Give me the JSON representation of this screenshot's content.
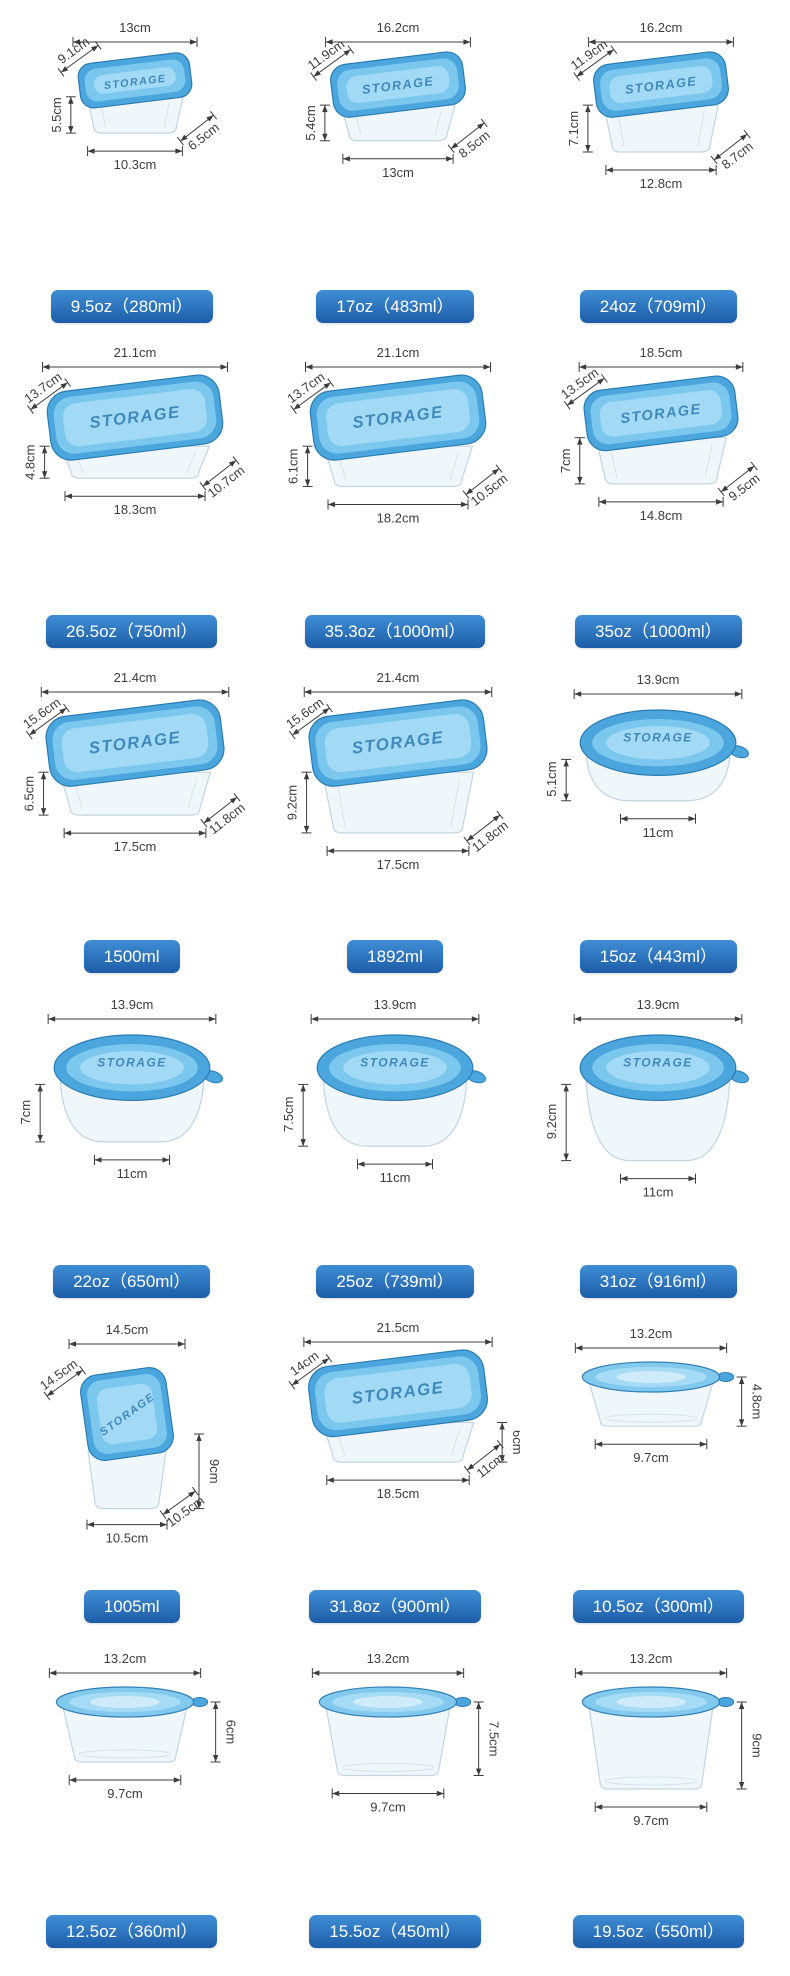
{
  "page": {
    "background": "#ffffff",
    "lid_text": "STORAGE"
  },
  "badge": {
    "bg_top": "#3f8ed5",
    "bg_bottom": "#1d5da8",
    "text_color": "#ffffff"
  },
  "palette": {
    "dim": "#3c3c3c",
    "lid_outer": "#4aa6dd",
    "lid_mid": "#7cc7ee",
    "lid_inner": "#a6dbf5",
    "lid_stroke": "#2b7cb3",
    "lid_text_color": "#1f6fa8",
    "body_fill": "rgba(228,240,248,0.55)",
    "body_stroke": "#c3d5e0"
  },
  "products": [
    {
      "shape": "rect",
      "label": "9.5oz（280ml）",
      "height_side": "left",
      "dims": {
        "top_width": "13cm",
        "lid_depth": "9.1cm",
        "height": "5.5cm",
        "bottom_width": "10.3cm",
        "bottom_depth": "6.5cm"
      }
    },
    {
      "shape": "rect",
      "label": "17oz（483ml）",
      "height_side": "left",
      "dims": {
        "top_width": "16.2cm",
        "lid_depth": "11.9cm",
        "height": "5.4cm",
        "bottom_width": "13cm",
        "bottom_depth": "8.5cm"
      }
    },
    {
      "shape": "rect",
      "label": "24oz（709ml）",
      "height_side": "left",
      "dims": {
        "top_width": "16.2cm",
        "lid_depth": "11.9cm",
        "height": "7.1cm",
        "bottom_width": "12.8cm",
        "bottom_depth": "8.7cm"
      }
    },
    {
      "shape": "rect",
      "label": "26.5oz（750ml）",
      "height_side": "left",
      "dims": {
        "top_width": "21.1cm",
        "lid_depth": "13.7cm",
        "height": "4.8cm",
        "bottom_width": "18.3cm",
        "bottom_depth": "10.7cm"
      }
    },
    {
      "shape": "rect",
      "label": "35.3oz（1000ml）",
      "height_side": "left",
      "dims": {
        "top_width": "21.1cm",
        "lid_depth": "13.7cm",
        "height": "6.1cm",
        "bottom_width": "18.2cm",
        "bottom_depth": "10.5cm"
      }
    },
    {
      "shape": "rect",
      "label": "35oz（1000ml）",
      "height_side": "left",
      "dims": {
        "top_width": "18.5cm",
        "lid_depth": "13.5cm",
        "height": "7cm",
        "bottom_width": "14.8cm",
        "bottom_depth": "9.5cm"
      }
    },
    {
      "shape": "rect",
      "label": "1500ml",
      "height_side": "left",
      "dims": {
        "top_width": "21.4cm",
        "lid_depth": "15.6cm",
        "height": "6.5cm",
        "bottom_width": "17.5cm",
        "bottom_depth": "11.8cm"
      }
    },
    {
      "shape": "rect",
      "label": "1892ml",
      "height_side": "left",
      "dims": {
        "top_width": "21.4cm",
        "lid_depth": "15.6cm",
        "height": "9.2cm",
        "bottom_width": "17.5cm",
        "bottom_depth": "11.8cm"
      }
    },
    {
      "shape": "bowl",
      "label": "15oz（443ml）",
      "height_side": "left",
      "dims": {
        "top_width": "13.9cm",
        "height": "5.1cm",
        "bottom_width": "11cm"
      }
    },
    {
      "shape": "bowl",
      "label": "22oz（650ml）",
      "height_side": "left",
      "dims": {
        "top_width": "13.9cm",
        "height": "7cm",
        "bottom_width": "11cm"
      }
    },
    {
      "shape": "bowl",
      "label": "25oz（739ml）",
      "height_side": "left",
      "dims": {
        "top_width": "13.9cm",
        "height": "7.5cm",
        "bottom_width": "11cm"
      }
    },
    {
      "shape": "bowl",
      "label": "31oz（916ml）",
      "height_side": "left",
      "dims": {
        "top_width": "13.9cm",
        "height": "9.2cm",
        "bottom_width": "11cm"
      }
    },
    {
      "shape": "square",
      "label": "1005ml",
      "height_side": "right",
      "dims": {
        "top_width": "14.5cm",
        "lid_depth": "14.5cm",
        "height": "9cm",
        "bottom_width": "10.5cm",
        "bottom_depth": "10.5cm"
      }
    },
    {
      "shape": "rect",
      "label": "31.8oz（900ml）",
      "height_side": "right",
      "dims": {
        "top_width": "21.5cm",
        "lid_depth": "14cm",
        "height": "6cm",
        "bottom_width": "18.5cm",
        "bottom_depth": "11cm"
      }
    },
    {
      "shape": "cup",
      "label": "10.5oz（300ml）",
      "height_side": "right",
      "dims": {
        "top_width": "13.2cm",
        "height": "4.8cm",
        "bottom_width": "9.7cm"
      }
    },
    {
      "shape": "cup",
      "label": "12.5oz（360ml）",
      "height_side": "right",
      "dims": {
        "top_width": "13.2cm",
        "height": "6cm",
        "bottom_width": "9.7cm"
      }
    },
    {
      "shape": "cup",
      "label": "15.5oz（450ml）",
      "height_side": "right",
      "dims": {
        "top_width": "13.2cm",
        "height": "7.5cm",
        "bottom_width": "9.7cm"
      }
    },
    {
      "shape": "cup",
      "label": "19.5oz（550ml）",
      "height_side": "right",
      "dims": {
        "top_width": "13.2cm",
        "height": "9cm",
        "bottom_width": "9.7cm"
      }
    }
  ]
}
